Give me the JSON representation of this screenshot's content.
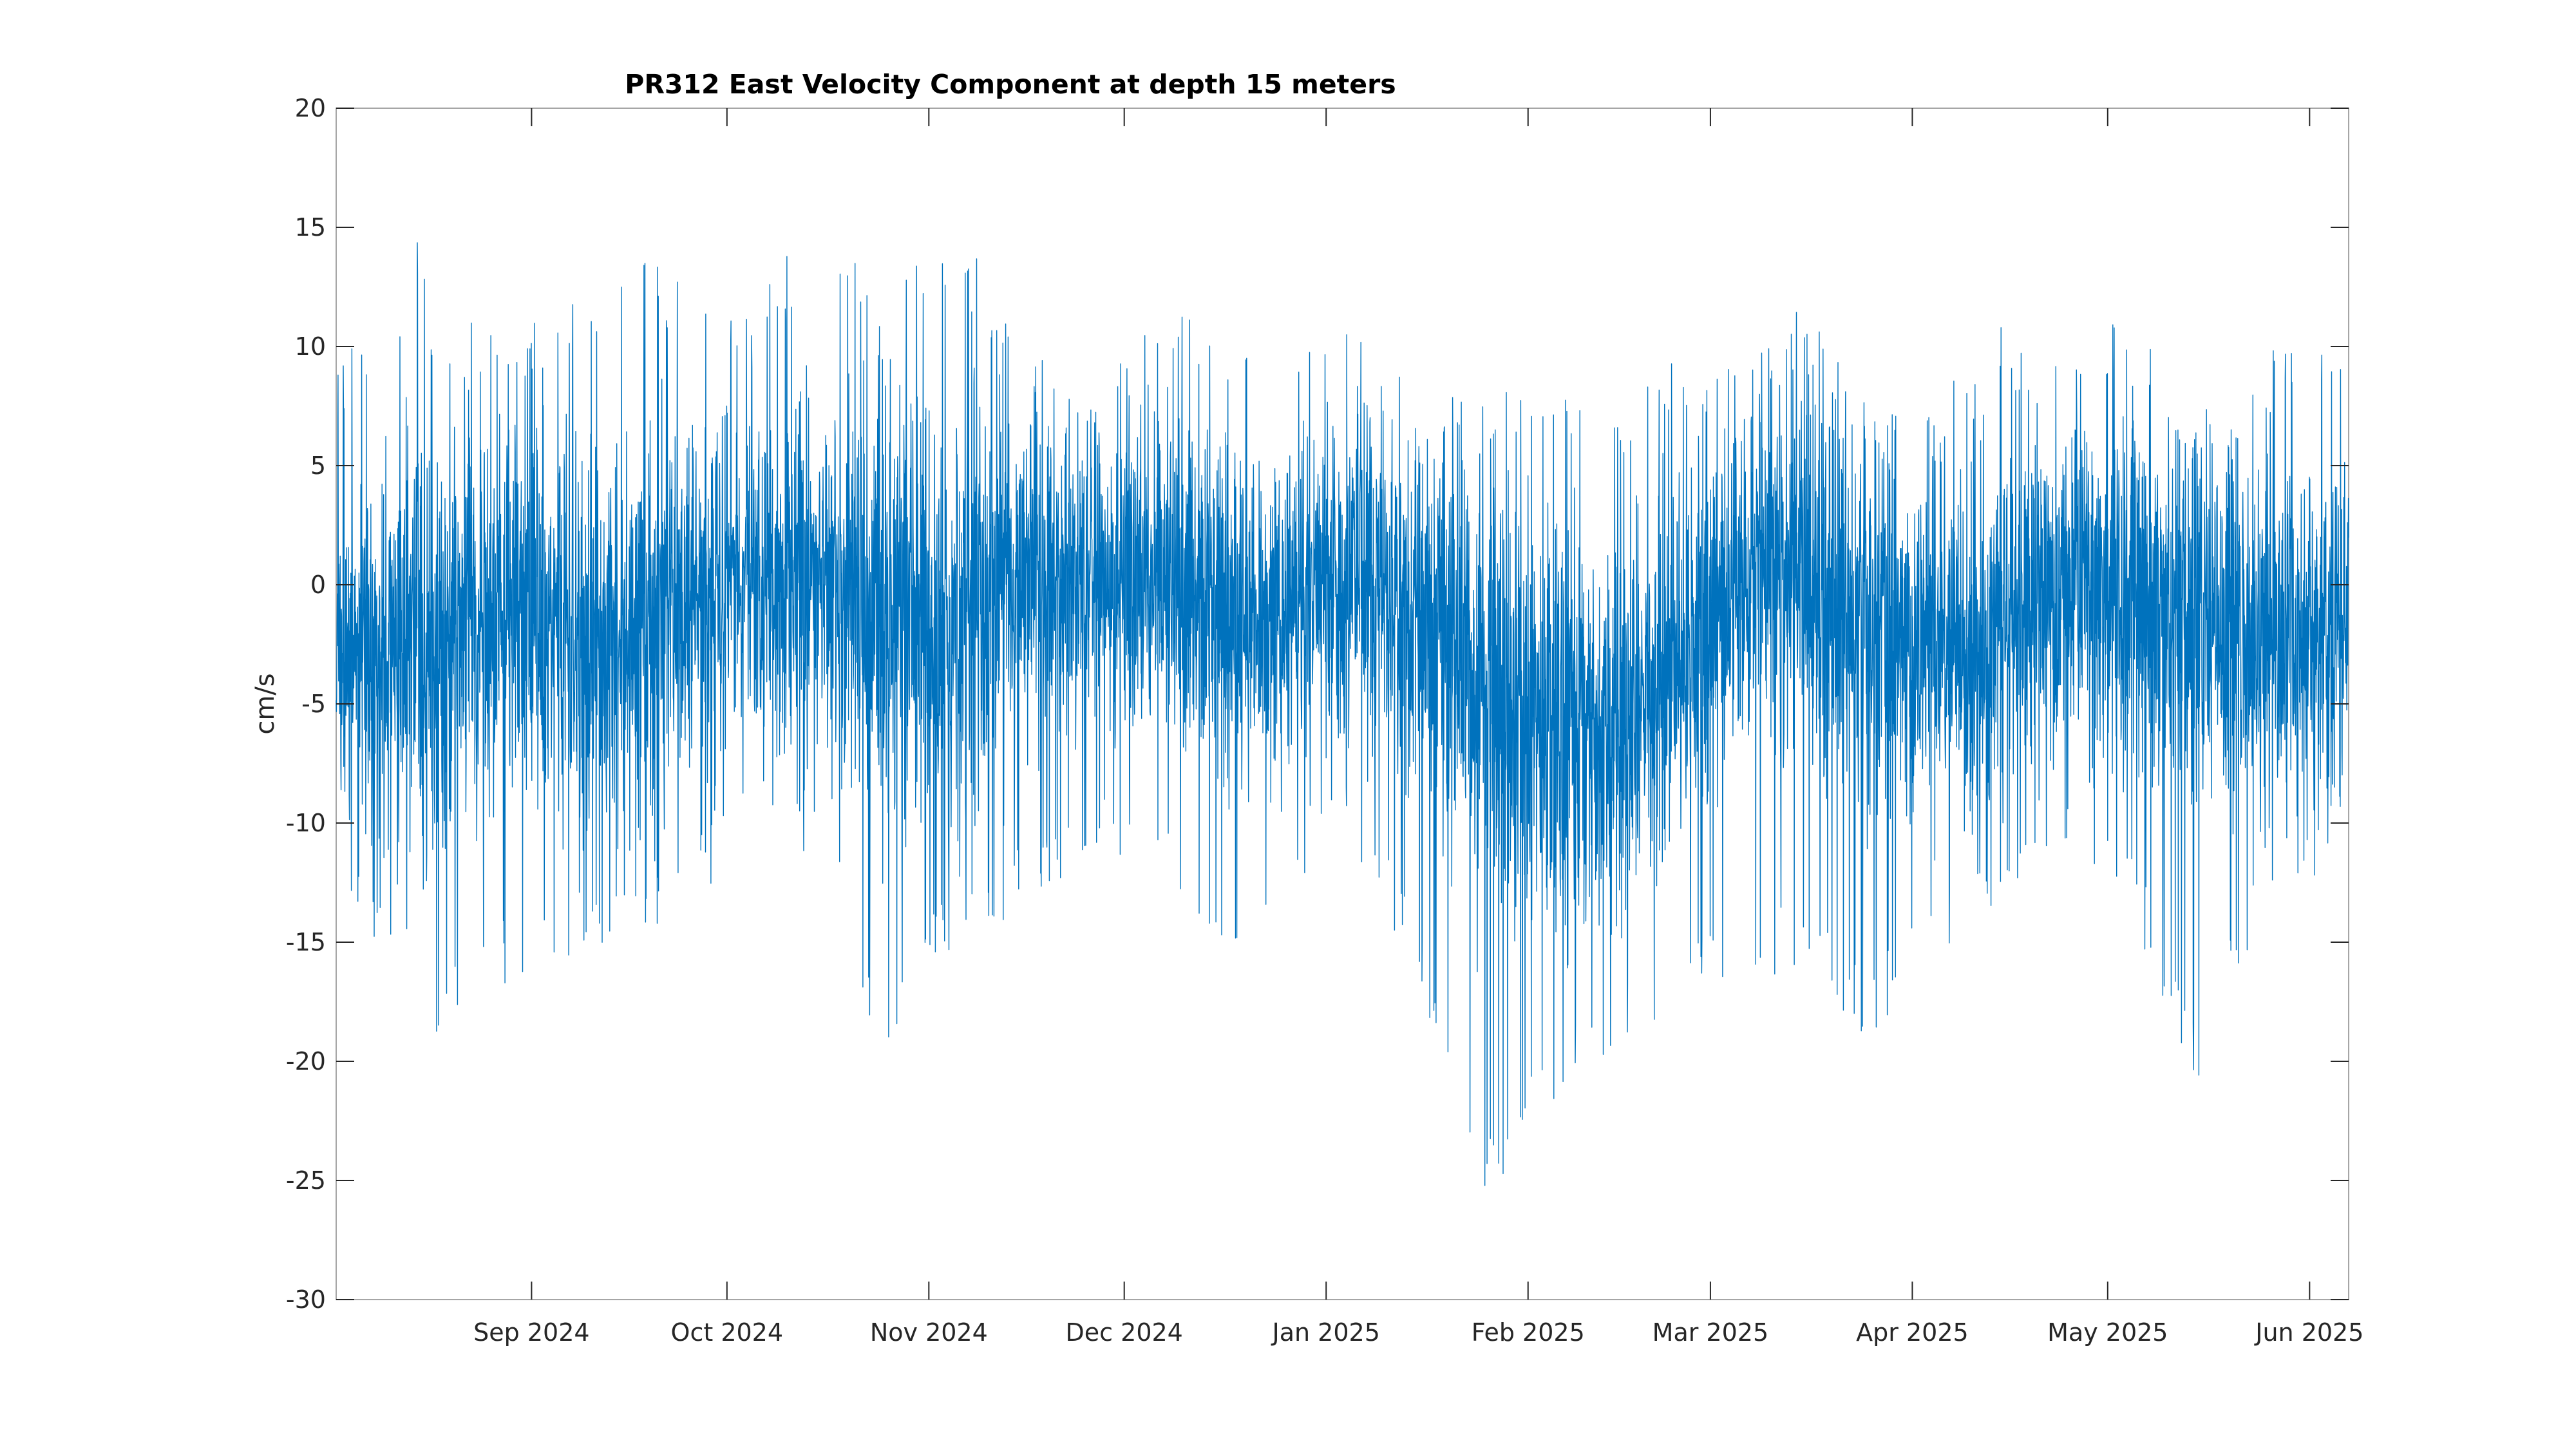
{
  "chart_data": {
    "type": "line",
    "title": "PR312 East Velocity Component at depth 15 meters",
    "xlabel": "",
    "ylabel": "cm/s",
    "xlim": [
      "2024-08-02",
      "2025-06-07"
    ],
    "ylim": [
      -30,
      20
    ],
    "x_ticks": [
      {
        "date": "2024-09-01",
        "label": "Sep 2024"
      },
      {
        "date": "2024-10-01",
        "label": "Oct 2024"
      },
      {
        "date": "2024-11-01",
        "label": "Nov 2024"
      },
      {
        "date": "2024-12-01",
        "label": "Dec 2024"
      },
      {
        "date": "2025-01-01",
        "label": "Jan 2025"
      },
      {
        "date": "2025-02-01",
        "label": "Feb 2025"
      },
      {
        "date": "2025-03-01",
        "label": "Mar 2025"
      },
      {
        "date": "2025-04-01",
        "label": "Apr 2025"
      },
      {
        "date": "2025-05-01",
        "label": "May 2025"
      },
      {
        "date": "2025-06-01",
        "label": "Jun 2025"
      }
    ],
    "y_ticks": [
      {
        "value": 20,
        "label": "20"
      },
      {
        "value": 15,
        "label": "15"
      },
      {
        "value": 10,
        "label": "10"
      },
      {
        "value": 5,
        "label": "5"
      },
      {
        "value": 0,
        "label": "0"
      },
      {
        "value": -5,
        "label": "-5"
      },
      {
        "value": -10,
        "label": "-10"
      },
      {
        "value": -15,
        "label": "-15"
      },
      {
        "value": -20,
        "label": "-20"
      },
      {
        "value": -25,
        "label": "-25"
      },
      {
        "value": -30,
        "label": "-30"
      }
    ],
    "grid": false,
    "colors": {
      "series": "#0072BD",
      "axes": "#262626",
      "box": "#a6a6a6"
    },
    "series": [
      {
        "x": [
          "2024-08-05",
          "2024-08-15",
          "2024-08-25",
          "2024-09-05",
          "2024-09-15",
          "2024-09-25",
          "2024-10-05",
          "2024-10-15",
          "2024-10-25",
          "2024-11-05",
          "2024-11-15",
          "2024-11-25",
          "2024-12-05",
          "2024-12-15",
          "2024-12-25",
          "2025-01-05",
          "2025-01-15",
          "2025-01-25",
          "2025-02-05",
          "2025-02-15",
          "2025-02-25",
          "2025-03-05",
          "2025-03-15",
          "2025-03-25",
          "2025-04-05",
          "2025-04-15",
          "2025-04-25",
          "2025-05-05",
          "2025-05-15",
          "2025-05-25",
          "2025-06-05"
        ],
        "y": [
          -3,
          -2,
          -1,
          -2,
          -3,
          -1,
          0,
          0,
          -1,
          -2,
          0,
          0,
          0,
          -1,
          -1,
          0,
          -1,
          -4,
          -6,
          -6,
          -3,
          0,
          1,
          -2,
          -3,
          -2,
          0,
          0,
          -2,
          -2,
          -2
        ],
        "range_min": [
          -14,
          -20,
          -17,
          -16,
          -15,
          -14,
          -10,
          -12,
          -21,
          -15,
          -14,
          -12,
          -12,
          -16,
          -13,
          -11,
          -17,
          -26,
          -22,
          -19,
          -18,
          -17,
          -16,
          -19,
          -16,
          -13,
          -12,
          -14,
          -22,
          -13,
          -12
        ],
        "range_max": [
          10,
          15,
          11,
          12,
          14,
          13,
          12,
          16,
          12,
          16,
          10,
          9,
          11,
          12,
          9,
          11,
          8,
          9,
          9,
          7,
          10,
          9,
          12,
          8,
          8,
          11,
          9,
          13,
          7,
          10,
          10
        ]
      }
    ]
  }
}
